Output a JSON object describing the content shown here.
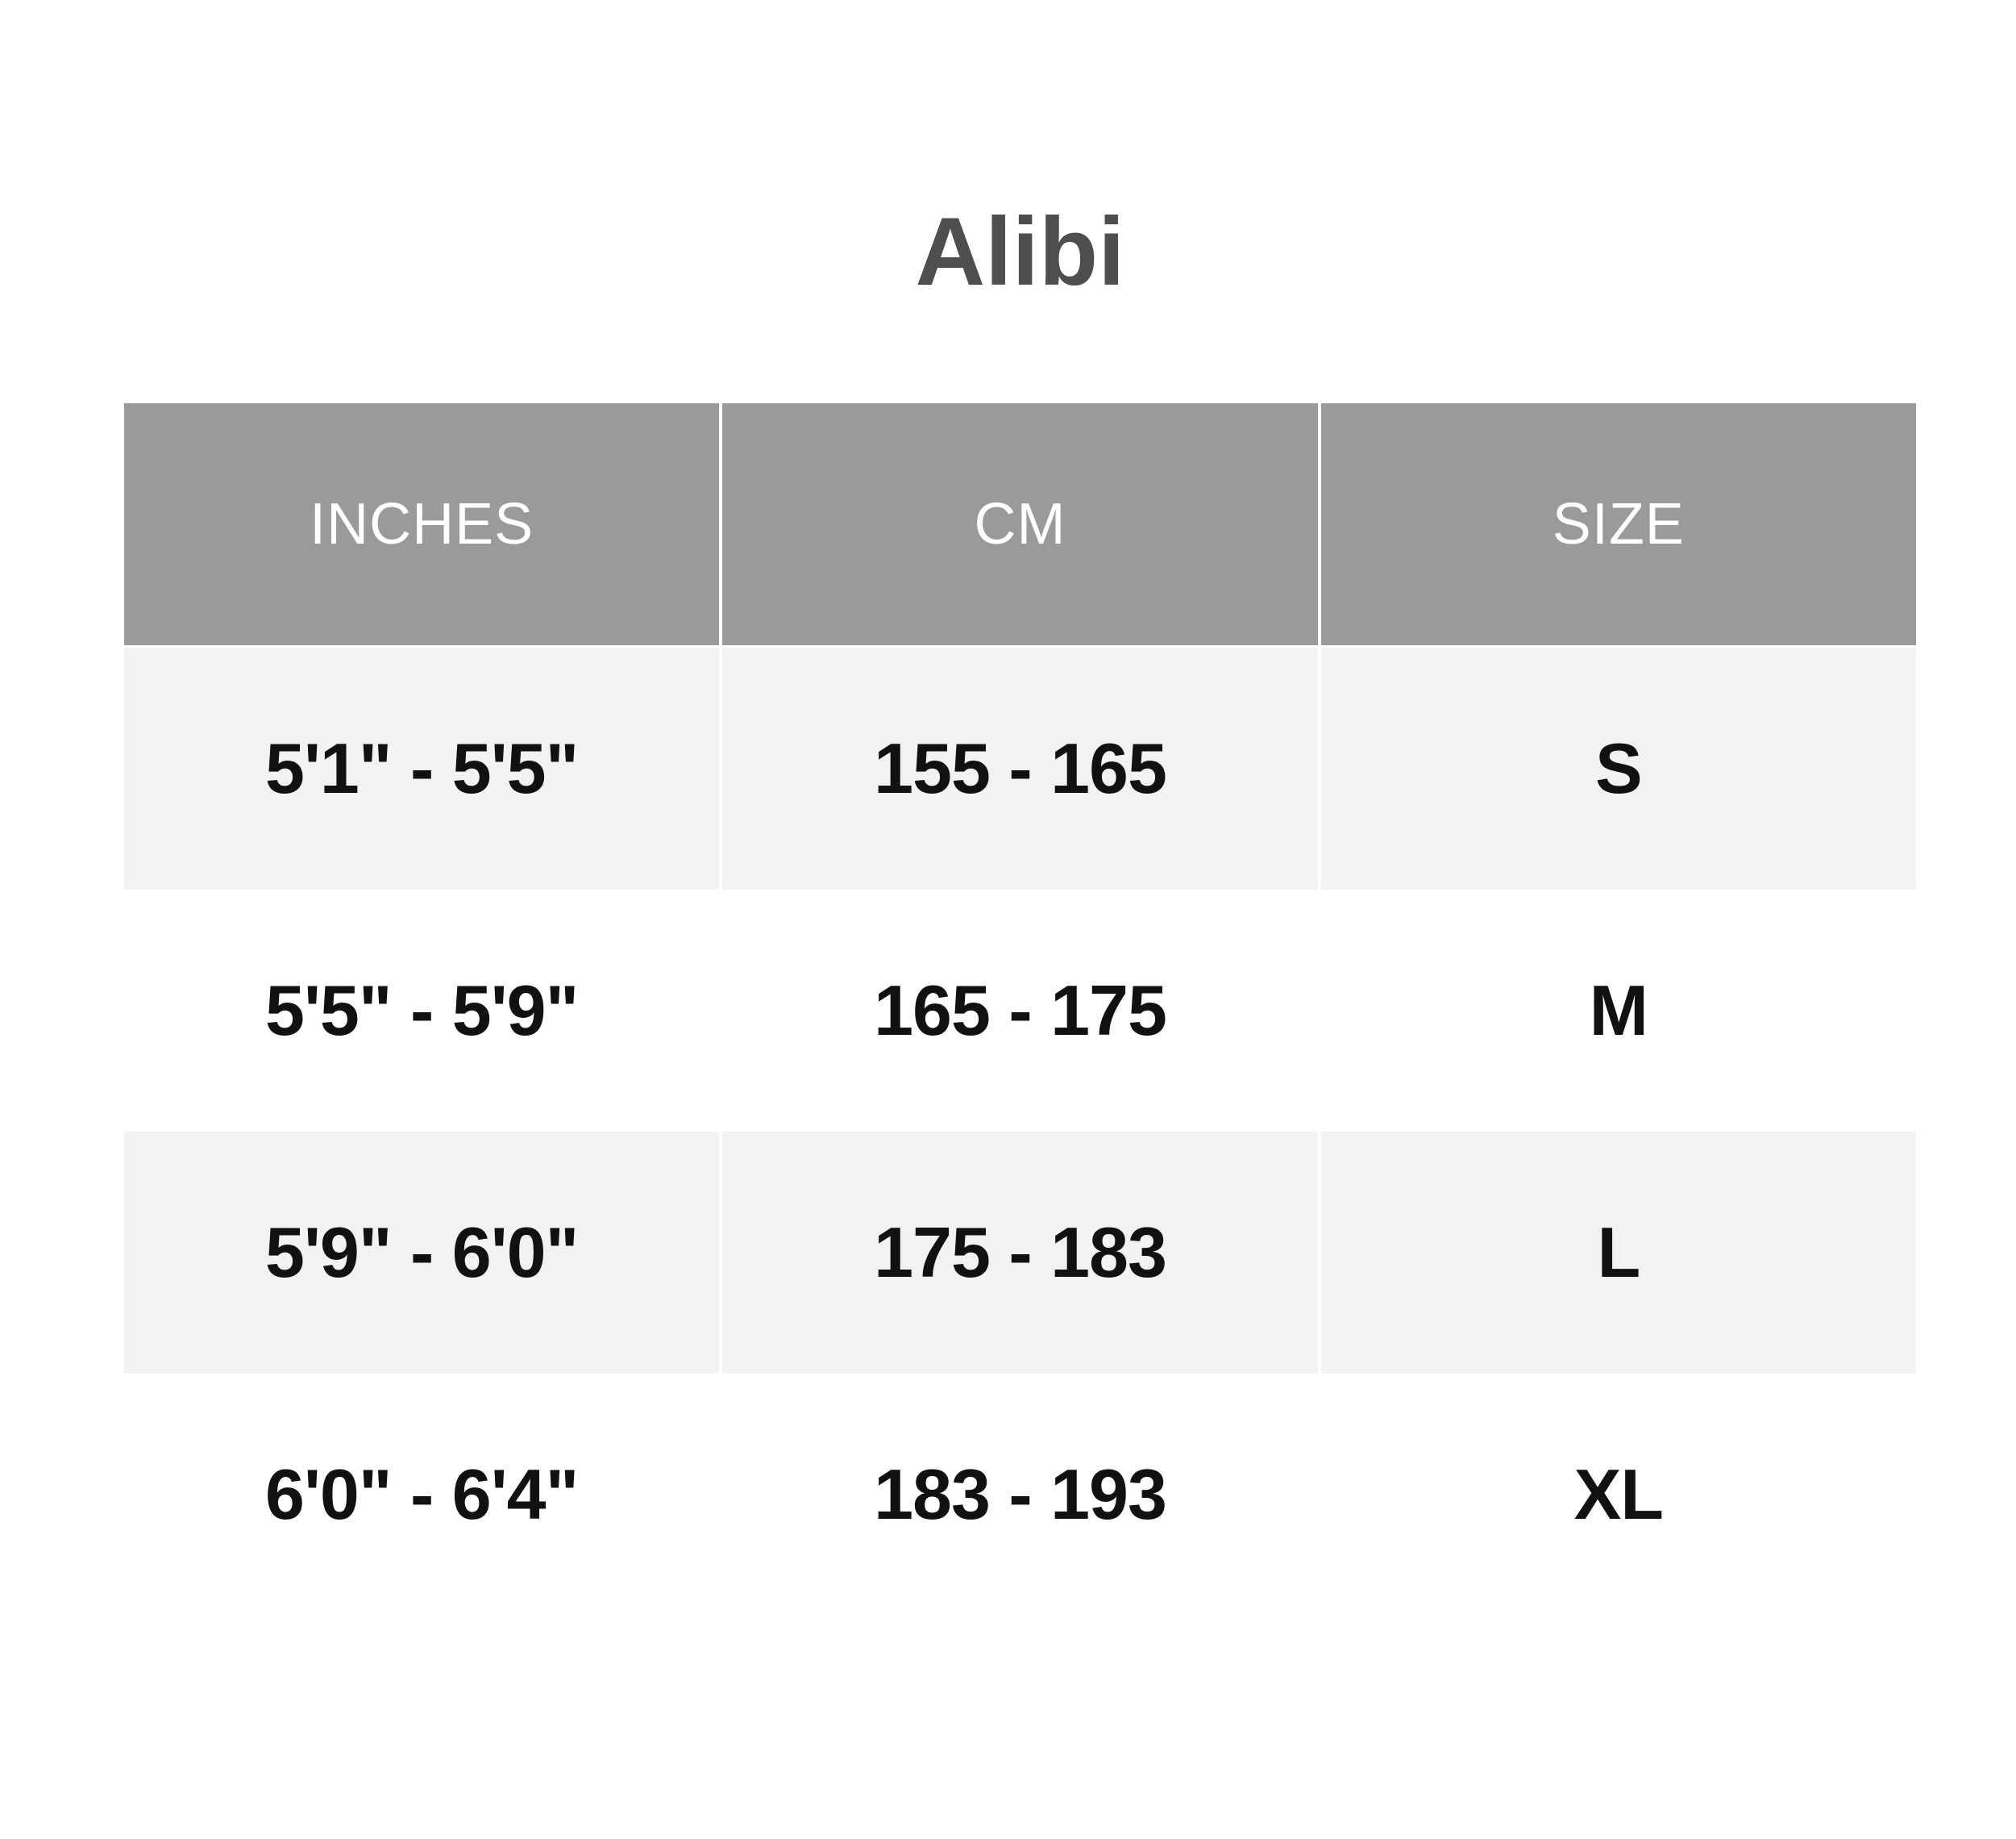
{
  "title": "Alibi",
  "table": {
    "columns": [
      {
        "id": "inches",
        "label": "INCHES"
      },
      {
        "id": "cm",
        "label": "CM"
      },
      {
        "id": "size",
        "label": "SIZE"
      }
    ],
    "rows": [
      {
        "inches": "5'1\" - 5'5\"",
        "cm": "155 - 165",
        "size": "S"
      },
      {
        "inches": "5'5\" - 5'9\"",
        "cm": "165 - 175",
        "size": "M"
      },
      {
        "inches": "5'9\" - 6'0\"",
        "cm": "175 - 183",
        "size": "L"
      },
      {
        "inches": "6'0\" - 6'4\"",
        "cm": "183 - 193",
        "size": "XL"
      }
    ]
  },
  "chart_data": {
    "type": "table",
    "title": "Alibi",
    "columns": [
      "INCHES",
      "CM",
      "SIZE"
    ],
    "rows": [
      [
        "5'1\" - 5'5\"",
        "155 - 165",
        "S"
      ],
      [
        "5'5\" - 5'9\"",
        "165 - 175",
        "M"
      ],
      [
        "5'9\" - 6'0\"",
        "175 - 183",
        "L"
      ],
      [
        "6'0\" - 6'4\"",
        "183 - 193",
        "XL"
      ]
    ],
    "layout": {
      "header_style": "gray band with white text",
      "row_striping": [
        "shaded",
        "white",
        "shaded",
        "white"
      ],
      "column_dividers": "thin white vertical gaps"
    }
  },
  "colors": {
    "header_bg": "#9a9a9a",
    "header_text": "#ffffff",
    "row_shaded_bg": "#f2f2f2",
    "row_text": "#111111",
    "title_text": "#4e4e4e",
    "page_bg": "#ffffff"
  }
}
